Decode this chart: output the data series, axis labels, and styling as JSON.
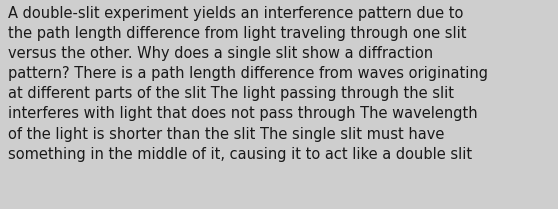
{
  "background_color": "#cecece",
  "text_color": "#1a1a1a",
  "lines": [
    "A double-slit experiment yields an interference pattern due to",
    "the path length difference from light traveling through one slit",
    "versus the other. Why does a single slit show a diffraction",
    "pattern? There is a path length difference from waves originating",
    "at different parts of the slit The light passing through the slit",
    "interferes with light that does not pass through The wavelength",
    "of the light is shorter than the slit The single slit must have",
    "something in the middle of it, causing it to act like a double slit"
  ],
  "font_size": 10.5,
  "font_family": "DejaVu Sans",
  "fig_width": 5.58,
  "fig_height": 2.09,
  "dpi": 100
}
